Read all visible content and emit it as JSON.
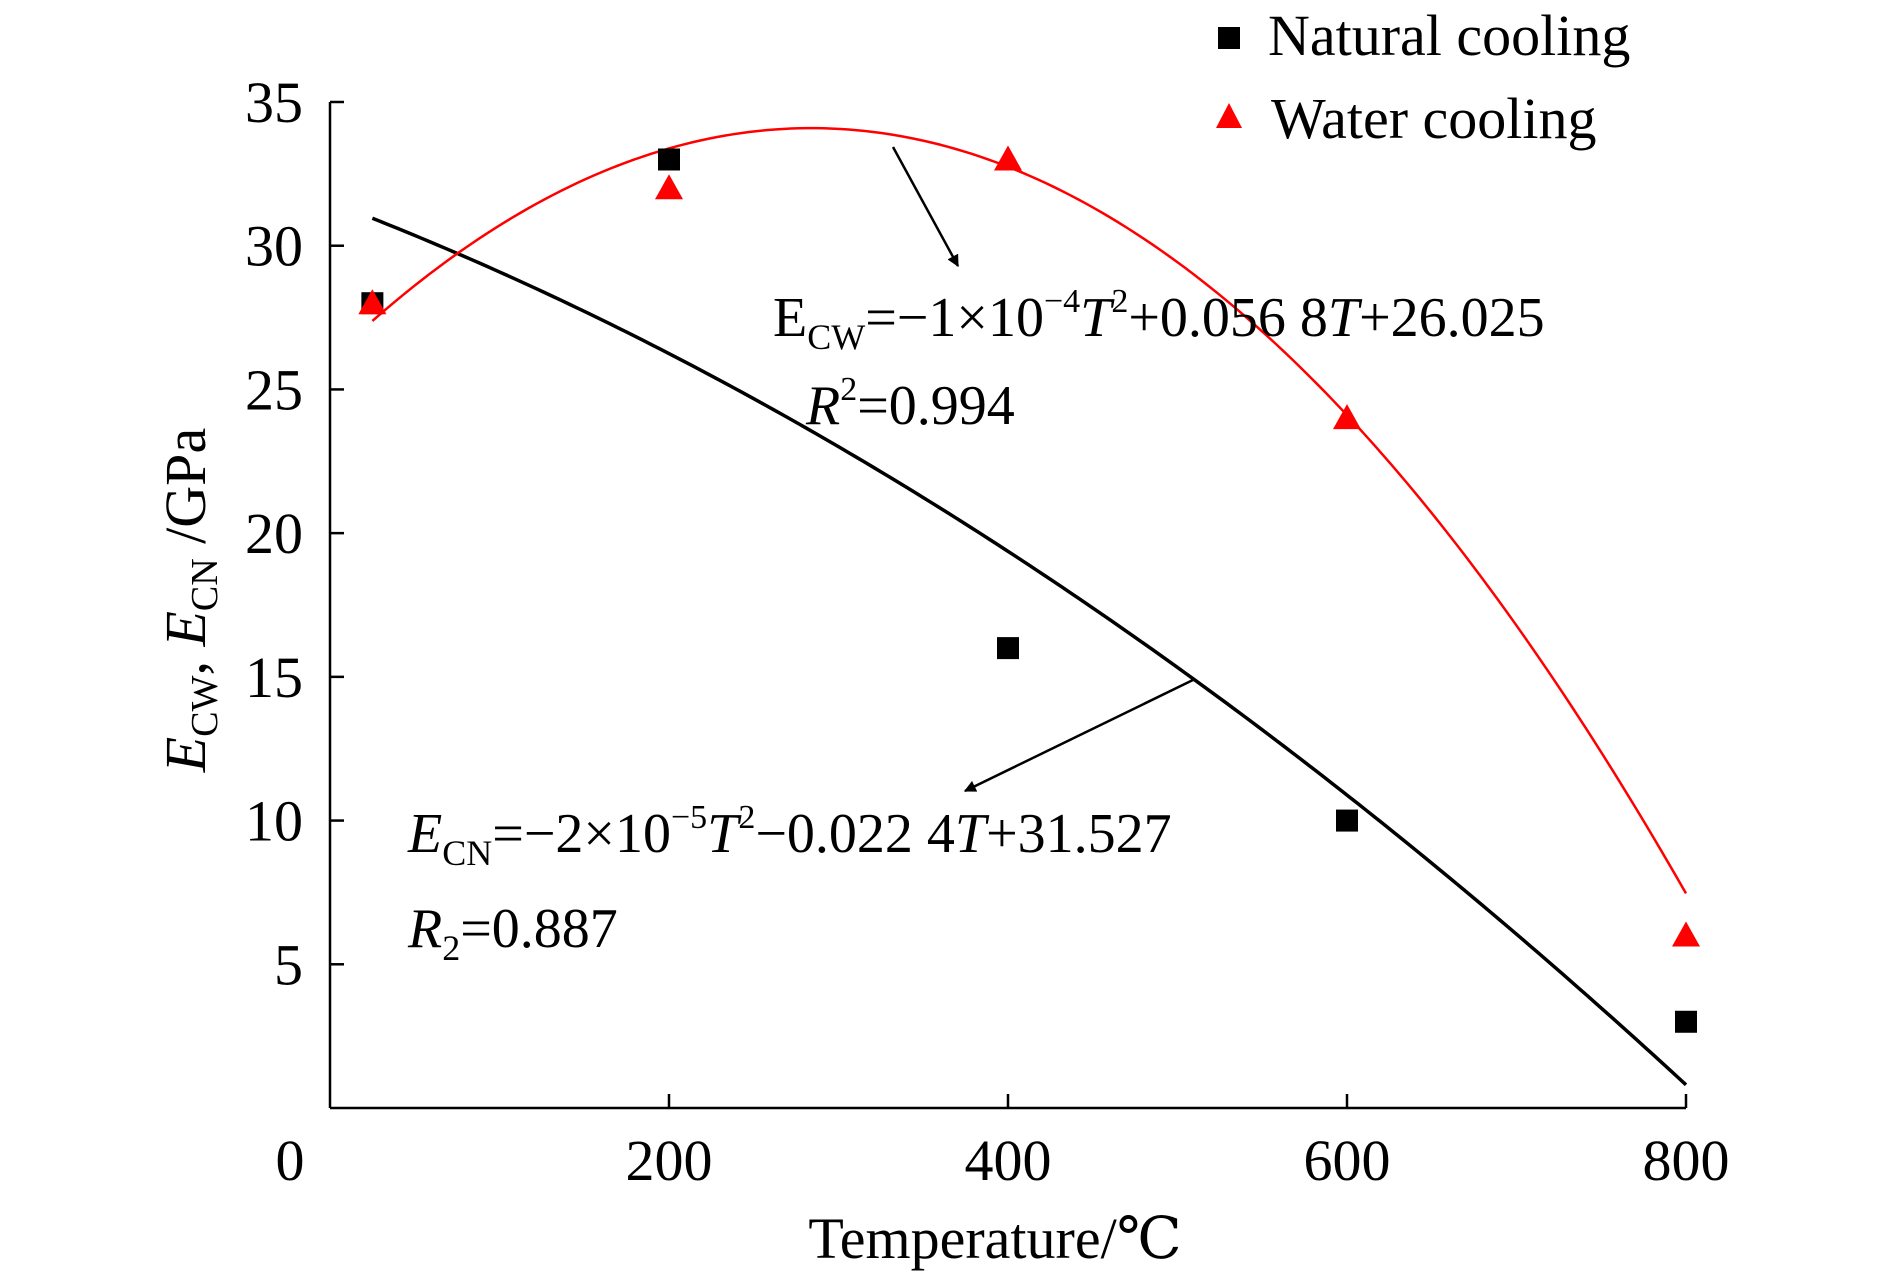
{
  "chart_data": {
    "type": "scatter",
    "xlabel": "Temperature/℃",
    "ylabel": {
      "var1": "E",
      "sub1": "CW",
      "sep": ", ",
      "var2": "E",
      "sub2": "CN",
      "unit": " /GPa"
    },
    "xlim": [
      0,
      800
    ],
    "ylim": [
      0,
      35
    ],
    "xticks": [
      "0",
      "200",
      "400",
      "600",
      "800"
    ],
    "yticks": [
      "5",
      "10",
      "15",
      "20",
      "25",
      "30",
      "35"
    ],
    "grid": false,
    "legend_position": "top-right",
    "series": [
      {
        "name": "Natural cooling",
        "marker": "square",
        "color": "#000000",
        "x": [
          25,
          200,
          400,
          600,
          800
        ],
        "y": [
          28,
          33,
          16,
          10,
          3
        ],
        "fit": {
          "a": -2e-05,
          "b": -0.0224,
          "c": 31.527,
          "from": 25,
          "to": 800
        }
      },
      {
        "name": "Water cooling",
        "marker": "triangle",
        "color": "#ff0000",
        "x": [
          25,
          200,
          400,
          600,
          800
        ],
        "y": [
          28,
          32,
          33,
          24,
          6
        ],
        "fit": {
          "a": -0.0001,
          "b": 0.0568,
          "c": 26.025,
          "from": 25,
          "to": 800
        }
      }
    ],
    "annotations": {
      "water_eq": {
        "lhs": "E",
        "lhs_sub": "CW",
        "p1": "=−1×10",
        "exp1": "−4",
        "v1": "T",
        "exp2": "2",
        "p2": "+0.056 8",
        "v2": "T",
        "p3": "+26.025"
      },
      "water_r2": {
        "v": "R",
        "exp": "2",
        "val": "=0.994"
      },
      "natural_eq": {
        "lhs": "E",
        "lhs_sub": "CN",
        "p1": "=−2×10",
        "exp1": "−5",
        "v1": "T",
        "exp2": "2",
        "p2": "−0.022 4",
        "v2": "T",
        "p3": "+31.527"
      },
      "natural_r2": {
        "v": "R",
        "sub": "2",
        "val": "=0.887"
      }
    }
  }
}
